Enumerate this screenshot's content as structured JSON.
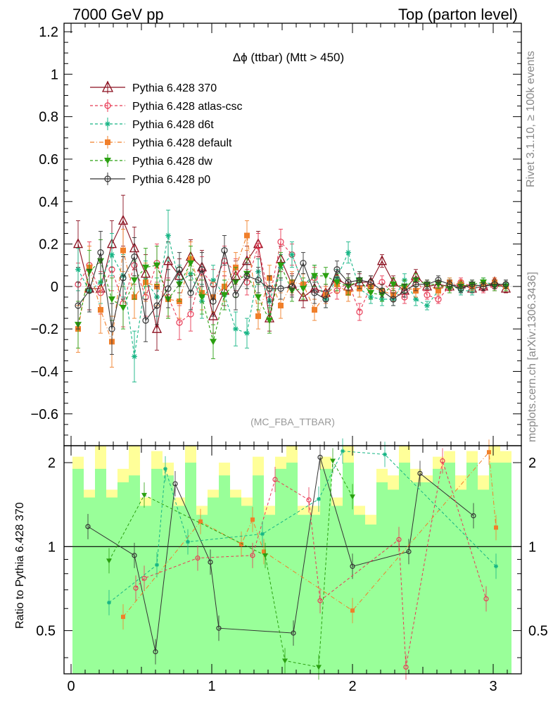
{
  "header": {
    "left": "7000 GeV pp",
    "right": "Top (parton level)"
  },
  "side_labels": {
    "rivet": "Rivet 3.1.10, ≥ 100k events",
    "mcplots": "mcplots.cern.ch [arXiv:1306.3436]"
  },
  "chart_data": {
    "type": "line",
    "title": "Δϕ (ttbar) (Mtt > 450)",
    "watermark": "(MC_FBA_TTBAR)",
    "ratio_ylabel": "Ratio to Pythia 6.428 370",
    "xlim": [
      -0.05,
      3.2
    ],
    "ylim": [
      -0.75,
      1.24
    ],
    "ratio_ylim": [
      0.35,
      2.3
    ],
    "x_ticks": [
      0,
      1,
      2,
      3
    ],
    "y_ticks": [
      1.2,
      1,
      0.8,
      0.6,
      0.4,
      0.2,
      0,
      -0.2,
      -0.4,
      -0.6
    ],
    "y_tick_labels": [
      "1.2",
      "1",
      "0.8",
      "0.6",
      "0.4",
      "0.2",
      "0",
      "−0.2",
      "−0.4",
      "−0.6"
    ],
    "ratio_ticks": [
      2,
      1,
      0.5
    ],
    "ratio_tick_labels": [
      "2",
      "1",
      "0.5"
    ],
    "x": [
      0.05,
      0.13,
      0.21,
      0.29,
      0.37,
      0.45,
      0.53,
      0.61,
      0.69,
      0.77,
      0.85,
      0.93,
      1.01,
      1.09,
      1.17,
      1.25,
      1.33,
      1.41,
      1.49,
      1.57,
      1.65,
      1.73,
      1.81,
      1.89,
      1.97,
      2.05,
      2.13,
      2.21,
      2.29,
      2.37,
      2.45,
      2.53,
      2.61,
      2.69,
      2.77,
      2.85,
      2.93,
      3.01,
      3.09
    ],
    "series": [
      {
        "name": "Pythia 6.428 370",
        "color": "#8b0f1e",
        "dash": "",
        "marker": "triangle-open",
        "values": [
          0.2,
          -0.01,
          -0.01,
          0.2,
          0.31,
          0.18,
          0.06,
          -0.2,
          0.12,
          0.05,
          0.14,
          0.09,
          -0.14,
          -0.02,
          0.05,
          0.12,
          0.2,
          -0.15,
          0.13,
          0.01,
          -0.05,
          -0.01,
          -0.03,
          0.04,
          0.0,
          0.02,
          0.02,
          0.12,
          0.02,
          -0.02,
          0.05,
          0.0,
          0.01,
          0.0,
          0.01,
          -0.01,
          0.0,
          0.02,
          -0.01
        ],
        "errors": [
          0.11,
          0.1,
          0.12,
          0.11,
          0.12,
          0.1,
          0.09,
          0.1,
          0.09,
          0.08,
          0.08,
          0.08,
          0.08,
          0.07,
          0.07,
          0.07,
          0.06,
          0.06,
          0.06,
          0.05,
          0.05,
          0.05,
          0.04,
          0.04,
          0.04,
          0.04,
          0.03,
          0.03,
          0.03,
          0.03,
          0.03,
          0.02,
          0.02,
          0.02,
          0.02,
          0.02,
          0.02,
          0.02,
          0.02
        ]
      },
      {
        "name": "Pythia 6.428 atlas-csc",
        "color": "#e83a55",
        "dash": "4,3",
        "marker": "circle-open",
        "values": [
          0.01,
          0.1,
          -0.03,
          0.08,
          -0.08,
          0.1,
          -0.05,
          0.11,
          -0.05,
          -0.17,
          -0.13,
          0.07,
          0.01,
          0.12,
          0.07,
          0.02,
          0.19,
          -0.06,
          0.21,
          0.15,
          0.01,
          0.04,
          -0.04,
          -0.02,
          0.02,
          -0.12,
          0.0,
          0.02,
          -0.03,
          -0.05,
          0.03,
          -0.04,
          -0.06,
          0.0,
          0.02,
          0.0,
          -0.01,
          0.0,
          0.01
        ],
        "errors": [
          0.1,
          0.11,
          0.1,
          0.1,
          0.11,
          0.09,
          0.09,
          0.09,
          0.09,
          0.08,
          0.08,
          0.07,
          0.07,
          0.07,
          0.06,
          0.06,
          0.06,
          0.06,
          0.06,
          0.05,
          0.05,
          0.05,
          0.04,
          0.04,
          0.04,
          0.04,
          0.03,
          0.03,
          0.03,
          0.03,
          0.03,
          0.02,
          0.02,
          0.02,
          0.02,
          0.02,
          0.02,
          0.02,
          0.02
        ]
      },
      {
        "name": "Pythia 6.428 d6t",
        "color": "#17b585",
        "dash": "4,3",
        "marker": "star",
        "values": [
          0.08,
          -0.02,
          0.02,
          0.15,
          0.05,
          -0.33,
          0.03,
          -0.05,
          0.24,
          0.02,
          0.06,
          -0.07,
          0.03,
          -0.04,
          -0.2,
          -0.22,
          0.07,
          -0.07,
          0.09,
          0.15,
          0.01,
          0.05,
          -0.06,
          0.04,
          0.16,
          -0.01,
          -0.05,
          -0.06,
          -0.06,
          0.03,
          -0.06,
          -0.09,
          -0.02,
          0.02,
          -0.02,
          -0.02,
          0.02,
          0.01,
          0.01
        ],
        "errors": [
          0.1,
          0.1,
          0.1,
          0.1,
          0.1,
          0.12,
          0.09,
          0.09,
          0.12,
          0.08,
          0.08,
          0.08,
          0.07,
          0.07,
          0.08,
          0.07,
          0.06,
          0.06,
          0.06,
          0.06,
          0.05,
          0.05,
          0.04,
          0.04,
          0.05,
          0.04,
          0.03,
          0.03,
          0.03,
          0.03,
          0.03,
          0.02,
          0.02,
          0.02,
          0.02,
          0.02,
          0.02,
          0.02,
          0.02
        ]
      },
      {
        "name": "Pythia 6.428 default",
        "color": "#f07f2a",
        "dash": "6,3,1,3",
        "marker": "square",
        "values": [
          -0.2,
          0.09,
          -0.11,
          -0.26,
          0.17,
          -0.05,
          0.02,
          0.0,
          -0.06,
          -0.07,
          0.13,
          -0.03,
          -0.05,
          0.0,
          0.09,
          0.24,
          -0.14,
          0.04,
          -0.09,
          0.02,
          0.01,
          -0.11,
          -0.04,
          0.01,
          -0.03,
          -0.01,
          0.0,
          -0.02,
          -0.04,
          0.0,
          -0.02,
          0.01,
          -0.02,
          0.02,
          0.01,
          0.0,
          0.01,
          0.02,
          0.0
        ],
        "errors": [
          0.11,
          0.1,
          0.11,
          0.12,
          0.1,
          0.1,
          0.09,
          0.09,
          0.09,
          0.08,
          0.08,
          0.08,
          0.07,
          0.07,
          0.07,
          0.07,
          0.06,
          0.06,
          0.06,
          0.05,
          0.05,
          0.05,
          0.04,
          0.04,
          0.04,
          0.04,
          0.03,
          0.03,
          0.03,
          0.03,
          0.03,
          0.02,
          0.02,
          0.02,
          0.02,
          0.02,
          0.02,
          0.02,
          0.02
        ]
      },
      {
        "name": "Pythia 6.428 dw",
        "color": "#2aa010",
        "dash": "4,3",
        "marker": "triangle-down",
        "values": [
          -0.18,
          0.07,
          0.12,
          -0.06,
          -0.1,
          0.03,
          0.09,
          0.1,
          -0.06,
          0.01,
          0.11,
          -0.05,
          -0.26,
          -0.04,
          0.02,
          0.06,
          -0.05,
          -0.16,
          0.1,
          -0.02,
          -0.01,
          0.05,
          0.05,
          0.02,
          0.0,
          0.03,
          -0.03,
          -0.04,
          0.01,
          0.0,
          0.03,
          0.01,
          0.01,
          -0.01,
          0.0,
          0.01,
          0.02,
          0.0,
          0.0
        ],
        "errors": [
          0.11,
          0.1,
          0.1,
          0.1,
          0.1,
          0.09,
          0.09,
          0.09,
          0.09,
          0.08,
          0.08,
          0.08,
          0.08,
          0.07,
          0.07,
          0.07,
          0.06,
          0.06,
          0.06,
          0.05,
          0.05,
          0.05,
          0.04,
          0.04,
          0.04,
          0.04,
          0.03,
          0.03,
          0.03,
          0.03,
          0.03,
          0.02,
          0.02,
          0.02,
          0.02,
          0.02,
          0.02,
          0.02,
          0.02
        ]
      },
      {
        "name": "Pythia 6.428 p0",
        "color": "#333333",
        "dash": "",
        "marker": "circle-open",
        "values": [
          -0.09,
          -0.02,
          0.16,
          -0.2,
          0.04,
          0.14,
          -0.16,
          -0.09,
          -0.01,
          0.08,
          -0.03,
          0.08,
          -0.07,
          0.17,
          -0.04,
          0.05,
          0.03,
          -0.01,
          -0.01,
          0.0,
          0.11,
          -0.03,
          -0.06,
          0.08,
          0.02,
          0.03,
          0.02,
          -0.02,
          -0.06,
          -0.02,
          0.01,
          0.01,
          0.03,
          0.01,
          -0.01,
          0.01,
          0.0,
          0.01,
          0.01
        ],
        "errors": [
          0.11,
          0.1,
          0.1,
          0.12,
          0.1,
          0.09,
          0.1,
          0.09,
          0.09,
          0.08,
          0.08,
          0.08,
          0.07,
          0.07,
          0.07,
          0.06,
          0.06,
          0.06,
          0.05,
          0.05,
          0.05,
          0.05,
          0.04,
          0.04,
          0.04,
          0.04,
          0.03,
          0.03,
          0.03,
          0.03,
          0.03,
          0.02,
          0.02,
          0.02,
          0.02,
          0.02,
          0.02,
          0.02,
          0.02
        ]
      }
    ],
    "ratio_bands": {
      "yellow": [
        [
          0.35,
          2.1
        ],
        [
          0.35,
          1.6
        ],
        [
          0.35,
          2.3
        ],
        [
          0.35,
          1.6
        ],
        [
          0.35,
          1.9
        ],
        [
          0.35,
          2.3
        ],
        [
          0.35,
          1.5
        ],
        [
          0.35,
          2.2
        ],
        [
          0.35,
          2.0
        ],
        [
          0.35,
          1.5
        ],
        [
          0.35,
          2.3
        ],
        [
          0.35,
          1.4
        ],
        [
          0.35,
          1.6
        ],
        [
          0.35,
          2.0
        ],
        [
          0.35,
          1.6
        ],
        [
          0.35,
          1.5
        ],
        [
          0.35,
          2.1
        ],
        [
          0.35,
          1.4
        ],
        [
          0.35,
          2.1
        ],
        [
          0.35,
          2.3
        ],
        [
          0.35,
          1.4
        ],
        [
          0.35,
          1.4
        ],
        [
          0.35,
          2.1
        ],
        [
          0.35,
          1.5
        ],
        [
          0.35,
          2.3
        ],
        [
          0.35,
          1.4
        ],
        [
          0.35,
          1.3
        ],
        [
          0.35,
          1.9
        ],
        [
          0.35,
          1.8
        ],
        [
          0.35,
          2.3
        ],
        [
          0.35,
          1.9
        ],
        [
          0.35,
          1.8
        ],
        [
          0.35,
          2.1
        ],
        [
          0.35,
          2.2
        ],
        [
          0.35,
          1.8
        ],
        [
          0.35,
          2.2
        ],
        [
          0.35,
          1.8
        ],
        [
          0.35,
          2.3
        ],
        [
          0.35,
          2.2
        ]
      ],
      "green": [
        [
          0.35,
          1.9
        ],
        [
          0.35,
          1.5
        ],
        [
          0.35,
          1.9
        ],
        [
          0.35,
          1.5
        ],
        [
          0.35,
          1.7
        ],
        [
          0.35,
          1.8
        ],
        [
          0.35,
          1.4
        ],
        [
          0.35,
          1.9
        ],
        [
          0.35,
          1.8
        ],
        [
          0.35,
          1.4
        ],
        [
          0.35,
          2.0
        ],
        [
          0.35,
          1.3
        ],
        [
          0.35,
          1.5
        ],
        [
          0.35,
          1.8
        ],
        [
          0.35,
          1.5
        ],
        [
          0.35,
          1.4
        ],
        [
          0.35,
          1.8
        ],
        [
          0.35,
          1.3
        ],
        [
          0.35,
          1.9
        ],
        [
          0.35,
          2.0
        ],
        [
          0.35,
          1.3
        ],
        [
          0.35,
          1.3
        ],
        [
          0.35,
          1.9
        ],
        [
          0.35,
          1.4
        ],
        [
          0.35,
          2.0
        ],
        [
          0.35,
          1.3
        ],
        [
          0.35,
          1.2
        ],
        [
          0.35,
          1.7
        ],
        [
          0.35,
          1.6
        ],
        [
          0.35,
          2.0
        ],
        [
          0.35,
          1.7
        ],
        [
          0.35,
          1.7
        ],
        [
          0.35,
          1.9
        ],
        [
          0.35,
          2.0
        ],
        [
          0.35,
          1.6
        ],
        [
          0.35,
          2.0
        ],
        [
          0.35,
          1.6
        ],
        [
          0.35,
          2.0
        ],
        [
          0.35,
          2.0
        ]
      ]
    },
    "ratio_points": [
      {
        "name": "Pythia 6.428 p0",
        "x": [
          0.12,
          0.45,
          0.6,
          0.74,
          0.99,
          1.05,
          1.58,
          1.77,
          2.0,
          2.4,
          2.48,
          2.86
        ],
        "values": [
          1.18,
          0.93,
          0.42,
          1.68,
          0.88,
          0.51,
          0.49,
          2.09,
          0.85,
          0.96,
          1.83,
          1.29
        ]
      },
      {
        "name": "Pythia 6.428 atlas-csc",
        "x": [
          0.46,
          0.52,
          0.9,
          1.29,
          1.45,
          1.69,
          1.77,
          2.33,
          2.38,
          2.64,
          2.95
        ],
        "values": [
          0.71,
          0.77,
          0.91,
          0.93,
          1.74,
          1.47,
          0.64,
          1.06,
          0.37,
          2.03,
          0.65
        ]
      },
      {
        "name": "Pythia 6.428 default",
        "x": [
          0.37,
          0.92,
          1.21,
          1.29,
          1.37,
          2.0,
          2.97,
          3.02
        ],
        "values": [
          0.56,
          1.23,
          1.02,
          1.25,
          0.96,
          0.59,
          2.18,
          1.17
        ]
      },
      {
        "name": "Pythia 6.428 d6t",
        "x": [
          0.27,
          0.61,
          0.67,
          0.83,
          1.36,
          1.76,
          1.93,
          2.23,
          3.02
        ],
        "values": [
          0.63,
          0.86,
          1.9,
          1.04,
          1.11,
          1.48,
          2.2,
          2.14,
          0.85
        ]
      },
      {
        "name": "Pythia 6.428 dw",
        "x": [
          0.27,
          0.52,
          1.38,
          1.52,
          1.76,
          1.86,
          2.0
        ],
        "values": [
          0.89,
          1.53,
          0.93,
          0.39,
          0.37,
          2.03,
          1.51
        ]
      }
    ]
  }
}
